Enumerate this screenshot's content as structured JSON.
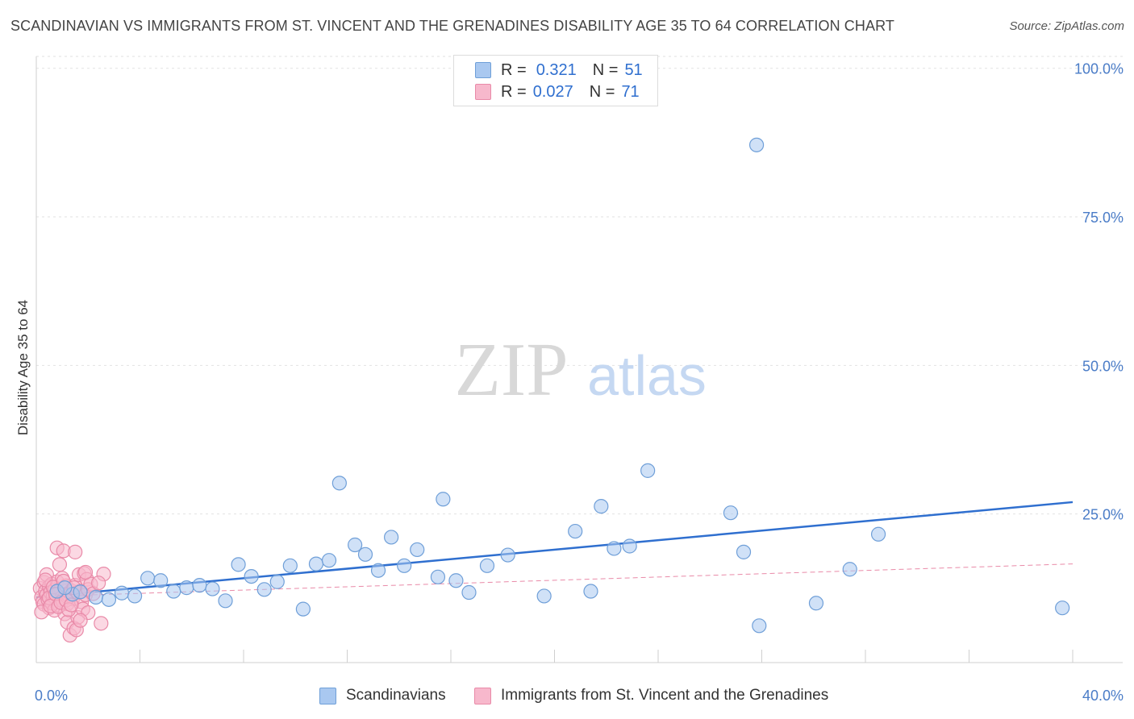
{
  "title": "SCANDINAVIAN VS IMMIGRANTS FROM ST. VINCENT AND THE GRENADINES DISABILITY AGE 35 TO 64 CORRELATION CHART",
  "source": "Source: ZipAtlas.com",
  "watermark": {
    "zip": "ZIP",
    "atlas": "atlas"
  },
  "legend_top": [
    {
      "r_label": "R =",
      "r_value": "0.321",
      "n_label": "N =",
      "n_value": "51",
      "color": "#a9c8f0",
      "border": "#6f9fd8"
    },
    {
      "r_label": "R =",
      "r_value": "0.027",
      "n_label": "N =",
      "n_value": "71",
      "color": "#f7b8cc",
      "border": "#e98aa8"
    }
  ],
  "legend_bottom": [
    {
      "label": "Scandinavians",
      "color": "#a9c8f0",
      "border": "#6f9fd8"
    },
    {
      "label": "Immigrants from St. Vincent and the Grenadines",
      "color": "#f7b8cc",
      "border": "#e98aa8"
    }
  ],
  "chart_data": {
    "type": "scatter",
    "title": "SCANDINAVIAN VS IMMIGRANTS FROM ST. VINCENT AND THE GRENADINES DISABILITY AGE 35 TO 64 CORRELATION CHART",
    "xlabel": "",
    "ylabel": "Disability Age 35 to 64",
    "xlim": [
      0,
      40
    ],
    "ylim": [
      0,
      102
    ],
    "x_tick_labels": [
      "0.0%",
      "40.0%"
    ],
    "y_ticks": [
      25,
      50,
      75,
      100
    ],
    "y_tick_labels": [
      "25.0%",
      "50.0%",
      "75.0%",
      "100.0%"
    ],
    "grid": true,
    "series": [
      {
        "name": "Scandinavians",
        "color": "#a9c8f0",
        "stroke": "#6f9fd8",
        "trend": {
          "x": [
            0,
            40
          ],
          "y": [
            11.0,
            27.0
          ],
          "color": "#2f6fcf",
          "style": "solid"
        },
        "points": [
          [
            0.8,
            12.0
          ],
          [
            1.4,
            11.5
          ],
          [
            2.3,
            11.0
          ],
          [
            2.8,
            10.6
          ],
          [
            3.3,
            11.7
          ],
          [
            3.8,
            11.2
          ],
          [
            4.3,
            14.2
          ],
          [
            4.8,
            13.8
          ],
          [
            5.3,
            12.0
          ],
          [
            5.8,
            12.6
          ],
          [
            6.3,
            13.0
          ],
          [
            6.8,
            12.4
          ],
          [
            7.3,
            10.4
          ],
          [
            7.8,
            16.5
          ],
          [
            8.3,
            14.5
          ],
          [
            8.8,
            12.3
          ],
          [
            9.3,
            13.6
          ],
          [
            9.8,
            16.3
          ],
          [
            10.3,
            9.0
          ],
          [
            10.8,
            16.6
          ],
          [
            11.3,
            17.2
          ],
          [
            11.7,
            30.2
          ],
          [
            12.3,
            19.8
          ],
          [
            12.7,
            18.2
          ],
          [
            13.2,
            15.5
          ],
          [
            13.7,
            21.1
          ],
          [
            14.2,
            16.3
          ],
          [
            14.7,
            19.0
          ],
          [
            15.5,
            14.4
          ],
          [
            15.7,
            27.5
          ],
          [
            16.2,
            13.8
          ],
          [
            16.7,
            11.8
          ],
          [
            17.4,
            16.3
          ],
          [
            18.2,
            18.1
          ],
          [
            19.6,
            11.2
          ],
          [
            20.8,
            22.1
          ],
          [
            21.4,
            12.0
          ],
          [
            21.8,
            26.3
          ],
          [
            22.3,
            19.2
          ],
          [
            22.9,
            19.6
          ],
          [
            23.6,
            32.3
          ],
          [
            27.8,
            87.1
          ],
          [
            26.8,
            25.2
          ],
          [
            27.3,
            18.6
          ],
          [
            27.9,
            6.2
          ],
          [
            30.1,
            10.0
          ],
          [
            31.4,
            15.7
          ],
          [
            32.5,
            21.6
          ],
          [
            39.6,
            9.2
          ],
          [
            1.1,
            12.6
          ],
          [
            1.7,
            11.9
          ]
        ]
      },
      {
        "name": "Immigrants from St. Vincent and the Grenadines",
        "color": "#f7b8cc",
        "stroke": "#e98aa8",
        "trend": {
          "x": [
            0,
            40
          ],
          "y": [
            11.1,
            16.6
          ],
          "color": "#e98aa8",
          "style": "dashed"
        },
        "points": [
          [
            0.15,
            12.5
          ],
          [
            0.2,
            11.0
          ],
          [
            0.25,
            10.2
          ],
          [
            0.3,
            13.5
          ],
          [
            0.3,
            9.8
          ],
          [
            0.35,
            12.0
          ],
          [
            0.4,
            11.4
          ],
          [
            0.4,
            14.8
          ],
          [
            0.45,
            10.6
          ],
          [
            0.5,
            12.8
          ],
          [
            0.5,
            9.2
          ],
          [
            0.55,
            11.8
          ],
          [
            0.6,
            13.2
          ],
          [
            0.6,
            10.0
          ],
          [
            0.65,
            11.2
          ],
          [
            0.7,
            12.2
          ],
          [
            0.7,
            8.8
          ],
          [
            0.75,
            10.8
          ],
          [
            0.8,
            19.3
          ],
          [
            0.8,
            13.6
          ],
          [
            0.85,
            11.6
          ],
          [
            0.9,
            9.6
          ],
          [
            0.9,
            16.5
          ],
          [
            0.95,
            12.4
          ],
          [
            1.0,
            10.4
          ],
          [
            1.0,
            14.2
          ],
          [
            1.05,
            18.8
          ],
          [
            1.1,
            11.0
          ],
          [
            1.1,
            8.2
          ],
          [
            1.15,
            12.9
          ],
          [
            1.2,
            9.9
          ],
          [
            1.2,
            6.8
          ],
          [
            1.25,
            11.3
          ],
          [
            1.3,
            4.6
          ],
          [
            1.35,
            12.1
          ],
          [
            1.4,
            10.7
          ],
          [
            1.45,
            5.8
          ],
          [
            1.5,
            13.0
          ],
          [
            1.5,
            18.6
          ],
          [
            1.6,
            11.8
          ],
          [
            1.6,
            7.6
          ],
          [
            1.65,
            14.8
          ],
          [
            1.7,
            12.0
          ],
          [
            1.75,
            10.2
          ],
          [
            1.8,
            9.0
          ],
          [
            1.85,
            15.0
          ],
          [
            1.9,
            11.4
          ],
          [
            1.95,
            14.0
          ],
          [
            2.0,
            8.4
          ],
          [
            2.0,
            12.3
          ],
          [
            2.1,
            13.2
          ],
          [
            2.2,
            11.6
          ],
          [
            2.6,
            14.9
          ],
          [
            2.5,
            6.6
          ],
          [
            0.2,
            8.5
          ],
          [
            0.35,
            13.9
          ],
          [
            0.5,
            10.9
          ],
          [
            0.55,
            9.5
          ],
          [
            0.65,
            12.7
          ],
          [
            0.75,
            11.5
          ],
          [
            0.85,
            9.4
          ],
          [
            0.95,
            10.1
          ],
          [
            1.05,
            13.7
          ],
          [
            1.15,
            10.5
          ],
          [
            1.25,
            8.9
          ],
          [
            1.35,
            9.7
          ],
          [
            1.45,
            12.6
          ],
          [
            1.55,
            5.5
          ],
          [
            1.7,
            7.1
          ],
          [
            1.9,
            15.2
          ],
          [
            2.4,
            13.4
          ]
        ]
      }
    ]
  }
}
